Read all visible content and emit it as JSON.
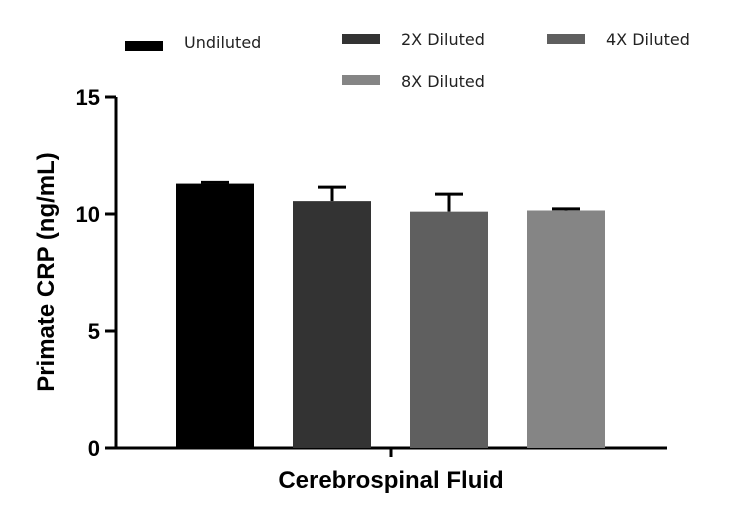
{
  "chart_data": {
    "type": "bar",
    "categories": [
      "Cerebrospinal Fluid"
    ],
    "xlabel": "Cerebrospinal Fluid",
    "ylabel": "Primate CRP (ng/mL)",
    "ylim": [
      0,
      15
    ],
    "yticks": [
      0,
      5,
      10,
      15
    ],
    "grid": false,
    "legend_position": "top",
    "series": [
      {
        "name": "Undiluted",
        "values": [
          11.3
        ],
        "error": [
          0.05
        ],
        "color": "#000000"
      },
      {
        "name": "2X Diluted",
        "values": [
          10.55
        ],
        "error": [
          0.6
        ],
        "color": "#333333"
      },
      {
        "name": "4X Diluted",
        "values": [
          10.1
        ],
        "error": [
          0.75
        ],
        "color": "#5f5f5f"
      },
      {
        "name": "8X Diluted",
        "values": [
          10.15
        ],
        "error": [
          0.07
        ],
        "color": "#858585"
      }
    ]
  }
}
